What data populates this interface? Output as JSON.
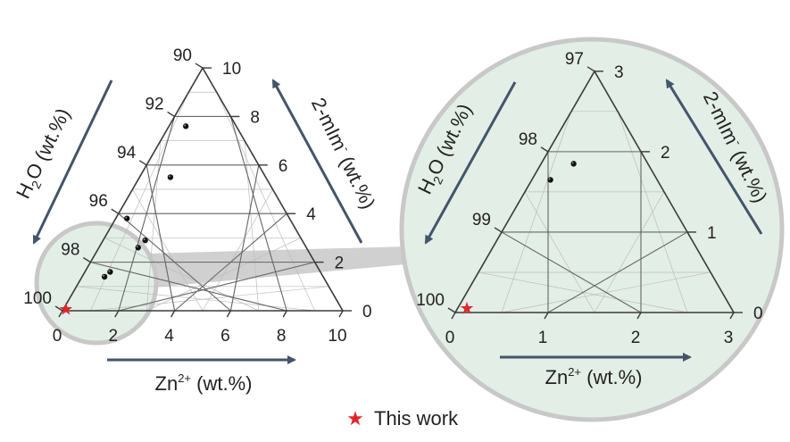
{
  "colors": {
    "frame": "#3a3a3a",
    "grid_major": "#666666",
    "grid_minor": "#bdbdbd",
    "arrow": "#44546a",
    "zoom_fill": "#e3eee6",
    "zoom_stroke": "#c8c8c8",
    "marker": "#111111",
    "star": "#e0262b"
  },
  "chart_data": [
    {
      "type": "scatter",
      "layout": "ternary",
      "axes": {
        "bottom": {
          "prefix": "Zn",
          "superscript": "2+",
          "suffix": " (wt.%)",
          "ticks": [
            "0",
            "2",
            "4",
            "6",
            "8",
            "10"
          ],
          "range": [
            0,
            10
          ]
        },
        "right": {
          "prefix": "2-mIm",
          "superscript": "-",
          "suffix": " (wt.%)",
          "ticks": [
            "0",
            "2",
            "4",
            "6",
            "8",
            "10"
          ],
          "range": [
            0,
            10
          ]
        },
        "left": {
          "prefix": "H",
          "subscript": "2",
          "suffix": "O (wt.%)",
          "ticks": [
            "100",
            "98",
            "96",
            "94",
            "92",
            "90"
          ],
          "range": [
            90,
            100
          ]
        }
      },
      "points": [
        {
          "zn": 0.6,
          "mim": 7.6
        },
        {
          "zn": 1.1,
          "mim": 5.5
        },
        {
          "zn": 0.4,
          "mim": 3.8
        },
        {
          "zn": 1.5,
          "mim": 2.9
        },
        {
          "zn": 1.4,
          "mim": 2.6
        },
        {
          "zn": 0.9,
          "mim": 1.6
        },
        {
          "zn": 0.8,
          "mim": 1.4
        }
      ],
      "this_work": {
        "zn": 0.1,
        "mim": 0.05
      }
    },
    {
      "type": "scatter",
      "layout": "ternary",
      "axes": {
        "bottom": {
          "prefix": "Zn",
          "superscript": "2+",
          "suffix": " (wt.%)",
          "ticks": [
            "0",
            "1",
            "2",
            "3"
          ],
          "range": [
            0,
            3
          ]
        },
        "right": {
          "prefix": "2-mIm",
          "superscript": "-",
          "suffix": " (wt.%)",
          "ticks": [
            "0",
            "1",
            "2",
            "3"
          ],
          "range": [
            0,
            3
          ]
        },
        "left": {
          "prefix": "H",
          "subscript": "2",
          "suffix": "O (wt.%)",
          "ticks": [
            "100",
            "99",
            "98",
            "97"
          ],
          "range": [
            97,
            100
          ]
        }
      },
      "points": [
        {
          "zn": 0.2,
          "mim": 1.65
        },
        {
          "zn": 0.35,
          "mim": 1.85
        }
      ],
      "this_work": {
        "zn": 0.1,
        "mim": 0.05
      }
    }
  ],
  "legend": {
    "label": "This work",
    "symbol": "★"
  }
}
